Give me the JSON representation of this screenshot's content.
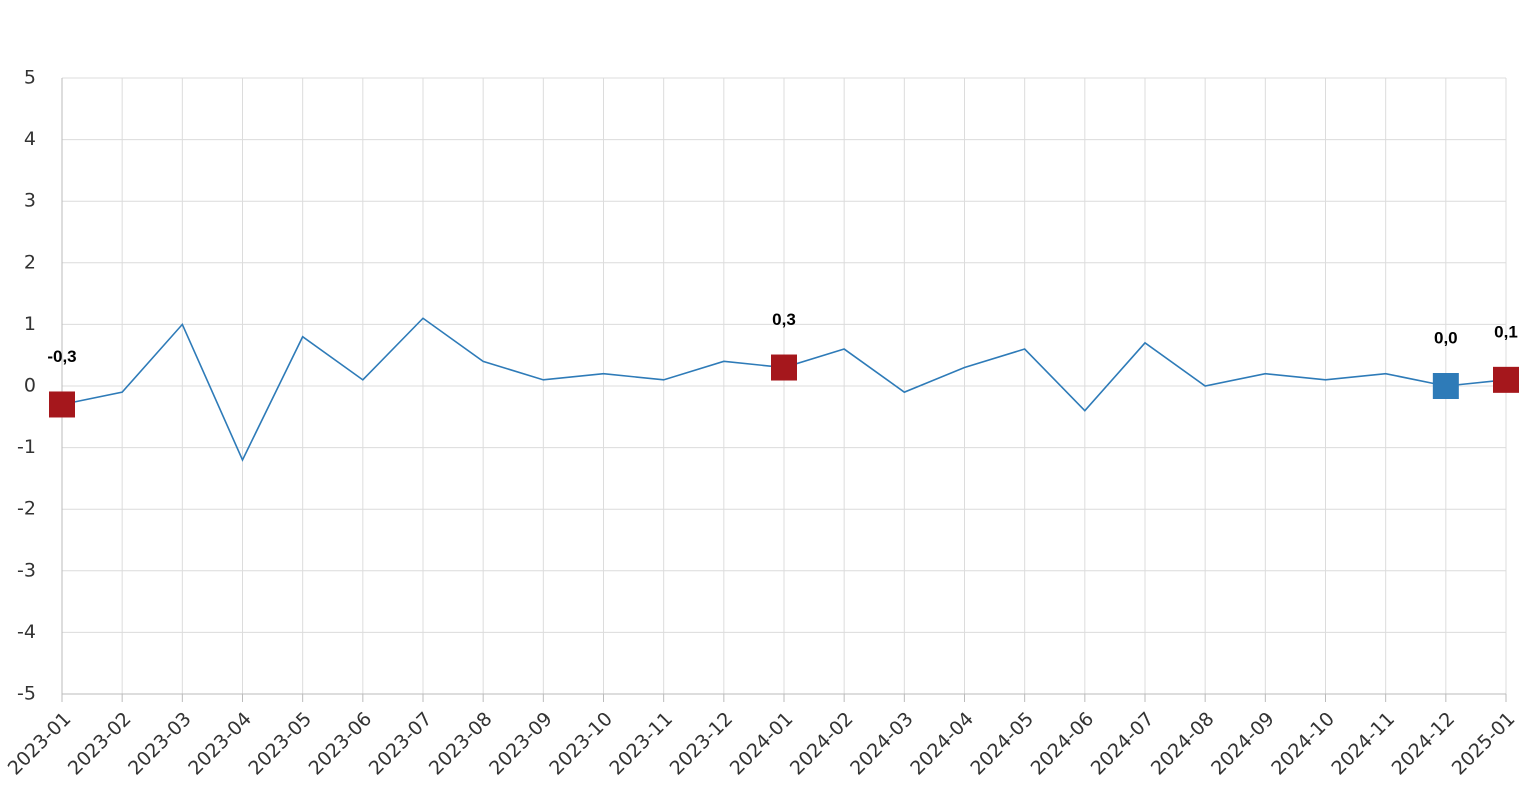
{
  "chart_data": {
    "type": "line",
    "categories": [
      "2023-01",
      "2023-02",
      "2023-03",
      "2023-04",
      "2023-05",
      "2023-06",
      "2023-07",
      "2023-08",
      "2023-09",
      "2023-10",
      "2023-11",
      "2023-12",
      "2024-01",
      "2024-02",
      "2024-03",
      "2024-04",
      "2024-05",
      "2024-06",
      "2024-07",
      "2024-08",
      "2024-09",
      "2024-10",
      "2024-11",
      "2024-12",
      "2025-01"
    ],
    "values": [
      -0.3,
      -0.1,
      1.0,
      -1.2,
      0.8,
      0.1,
      1.1,
      0.4,
      0.1,
      0.2,
      0.1,
      0.4,
      0.3,
      0.6,
      -0.1,
      0.3,
      0.6,
      -0.4,
      0.7,
      0.0,
      0.2,
      0.1,
      0.2,
      0.0,
      0.1
    ],
    "value_labels": [
      "-0,3",
      null,
      null,
      null,
      null,
      null,
      null,
      null,
      null,
      null,
      null,
      null,
      "0,3",
      null,
      null,
      null,
      null,
      null,
      null,
      null,
      null,
      null,
      null,
      "0,0",
      "0,1"
    ],
    "marker_colors": [
      "#a5171c",
      null,
      null,
      null,
      null,
      null,
      null,
      null,
      null,
      null,
      null,
      null,
      "#a5171c",
      null,
      null,
      null,
      null,
      null,
      null,
      null,
      null,
      null,
      null,
      "#2e7bb8",
      "#a5171c"
    ],
    "color": "#2e7bb8",
    "ylim": [
      -5,
      5
    ],
    "yticks": [
      -5,
      -4,
      -3,
      -2,
      -1,
      0,
      1,
      2,
      3,
      4,
      5
    ],
    "grid": true
  }
}
